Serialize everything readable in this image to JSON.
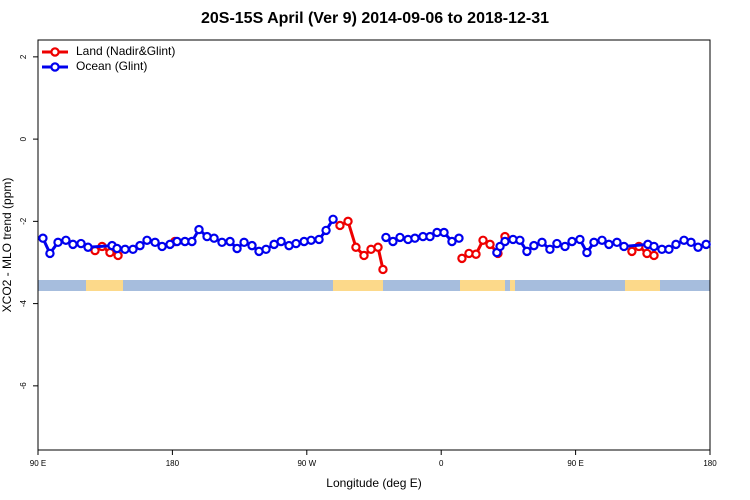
{
  "chart_data": {
    "type": "line",
    "title": "20S-15S April (Ver 9)   2014-09-06 to 2018-12-31",
    "x_label": "Longitude (deg E)",
    "y_label": "XCO2 - MLO trend (ppm)",
    "xlim": [
      90,
      540
    ],
    "xticks": [
      {
        "value": 90,
        "label": "90 E"
      },
      {
        "value": 180,
        "label": "180"
      },
      {
        "value": 270,
        "label": "90 W"
      },
      {
        "value": 360,
        "label": "0"
      },
      {
        "value": 450,
        "label": "90 E"
      },
      {
        "value": 540,
        "label": "180"
      }
    ],
    "ylim": [
      -7.56,
      2.41
    ],
    "yticks": [
      2,
      0,
      -2,
      -4,
      -6
    ],
    "legend": "top-left",
    "series": [
      {
        "name": "Land (Nadir&Glint)",
        "color": "#ee0000",
        "x": [
          128.2,
          132.9,
          138.2,
          143.6,
          null,
          181.7,
          null,
          292.2,
          297.6,
          302.9,
          308.3,
          313.0,
          317.7,
          321.0,
          null,
          373.9,
          378.6,
          383.3,
          388.0,
          392.7,
          398.0,
          402.7,
          null,
          487.7,
          492.4,
          497.8,
          502.5
        ],
        "values": [
          -2.71,
          -2.61,
          -2.76,
          -2.83,
          null,
          -2.49,
          null,
          -2.1,
          -2.0,
          -2.63,
          -2.83,
          -2.68,
          -2.63,
          -3.17,
          null,
          -2.9,
          -2.78,
          -2.8,
          -2.46,
          -2.56,
          -2.78,
          -2.37,
          null,
          -2.73,
          -2.61,
          -2.78,
          -2.83
        ]
      },
      {
        "name": "Ocean (Glint)",
        "color": "#0000ee",
        "x": [
          93.3,
          98.0,
          103.4,
          108.7,
          113.4,
          118.8,
          123.5,
          139.6,
          142.9,
          148.3,
          153.6,
          158.3,
          163.0,
          168.4,
          173.1,
          178.4,
          183.1,
          188.4,
          193.1,
          197.8,
          203.2,
          207.9,
          213.2,
          218.6,
          223.3,
          228.0,
          233.3,
          238.0,
          242.7,
          248.1,
          252.8,
          258.1,
          262.8,
          268.2,
          272.9,
          278.2,
          282.9,
          287.6,
          null,
          323.0,
          327.7,
          332.4,
          337.8,
          342.4,
          347.8,
          352.5,
          357.2,
          361.9,
          367.2,
          371.9,
          null,
          397.3,
          399.4,
          402.7,
          408.1,
          412.7,
          417.4,
          422.1,
          427.5,
          432.8,
          437.5,
          442.9,
          447.6,
          452.9,
          457.6,
          462.3,
          467.7,
          472.3,
          477.7,
          482.4,
          498.4,
          502.5,
          507.8,
          512.5,
          517.2,
          522.6,
          527.3,
          532.0,
          537.4
        ],
        "values": [
          -2.41,
          -2.78,
          -2.51,
          -2.46,
          -2.56,
          -2.54,
          -2.63,
          -2.59,
          -2.66,
          -2.68,
          -2.68,
          -2.59,
          -2.46,
          -2.51,
          -2.61,
          -2.56,
          -2.49,
          -2.49,
          -2.49,
          -2.2,
          -2.37,
          -2.41,
          -2.51,
          -2.49,
          -2.66,
          -2.51,
          -2.59,
          -2.73,
          -2.68,
          -2.56,
          -2.49,
          -2.59,
          -2.54,
          -2.49,
          -2.46,
          -2.44,
          -2.22,
          -1.95,
          null,
          -2.39,
          -2.49,
          -2.39,
          -2.44,
          -2.41,
          -2.37,
          -2.37,
          -2.27,
          -2.27,
          -2.49,
          -2.41,
          null,
          -2.76,
          -2.61,
          -2.49,
          -2.44,
          -2.46,
          -2.73,
          -2.59,
          -2.51,
          -2.68,
          -2.54,
          -2.61,
          -2.49,
          -2.44,
          -2.76,
          -2.51,
          -2.46,
          -2.56,
          -2.51,
          -2.61,
          -2.56,
          -2.61,
          -2.68,
          -2.68,
          -2.56,
          -2.46,
          -2.51,
          -2.63,
          -2.56
        ]
      }
    ]
  }
}
